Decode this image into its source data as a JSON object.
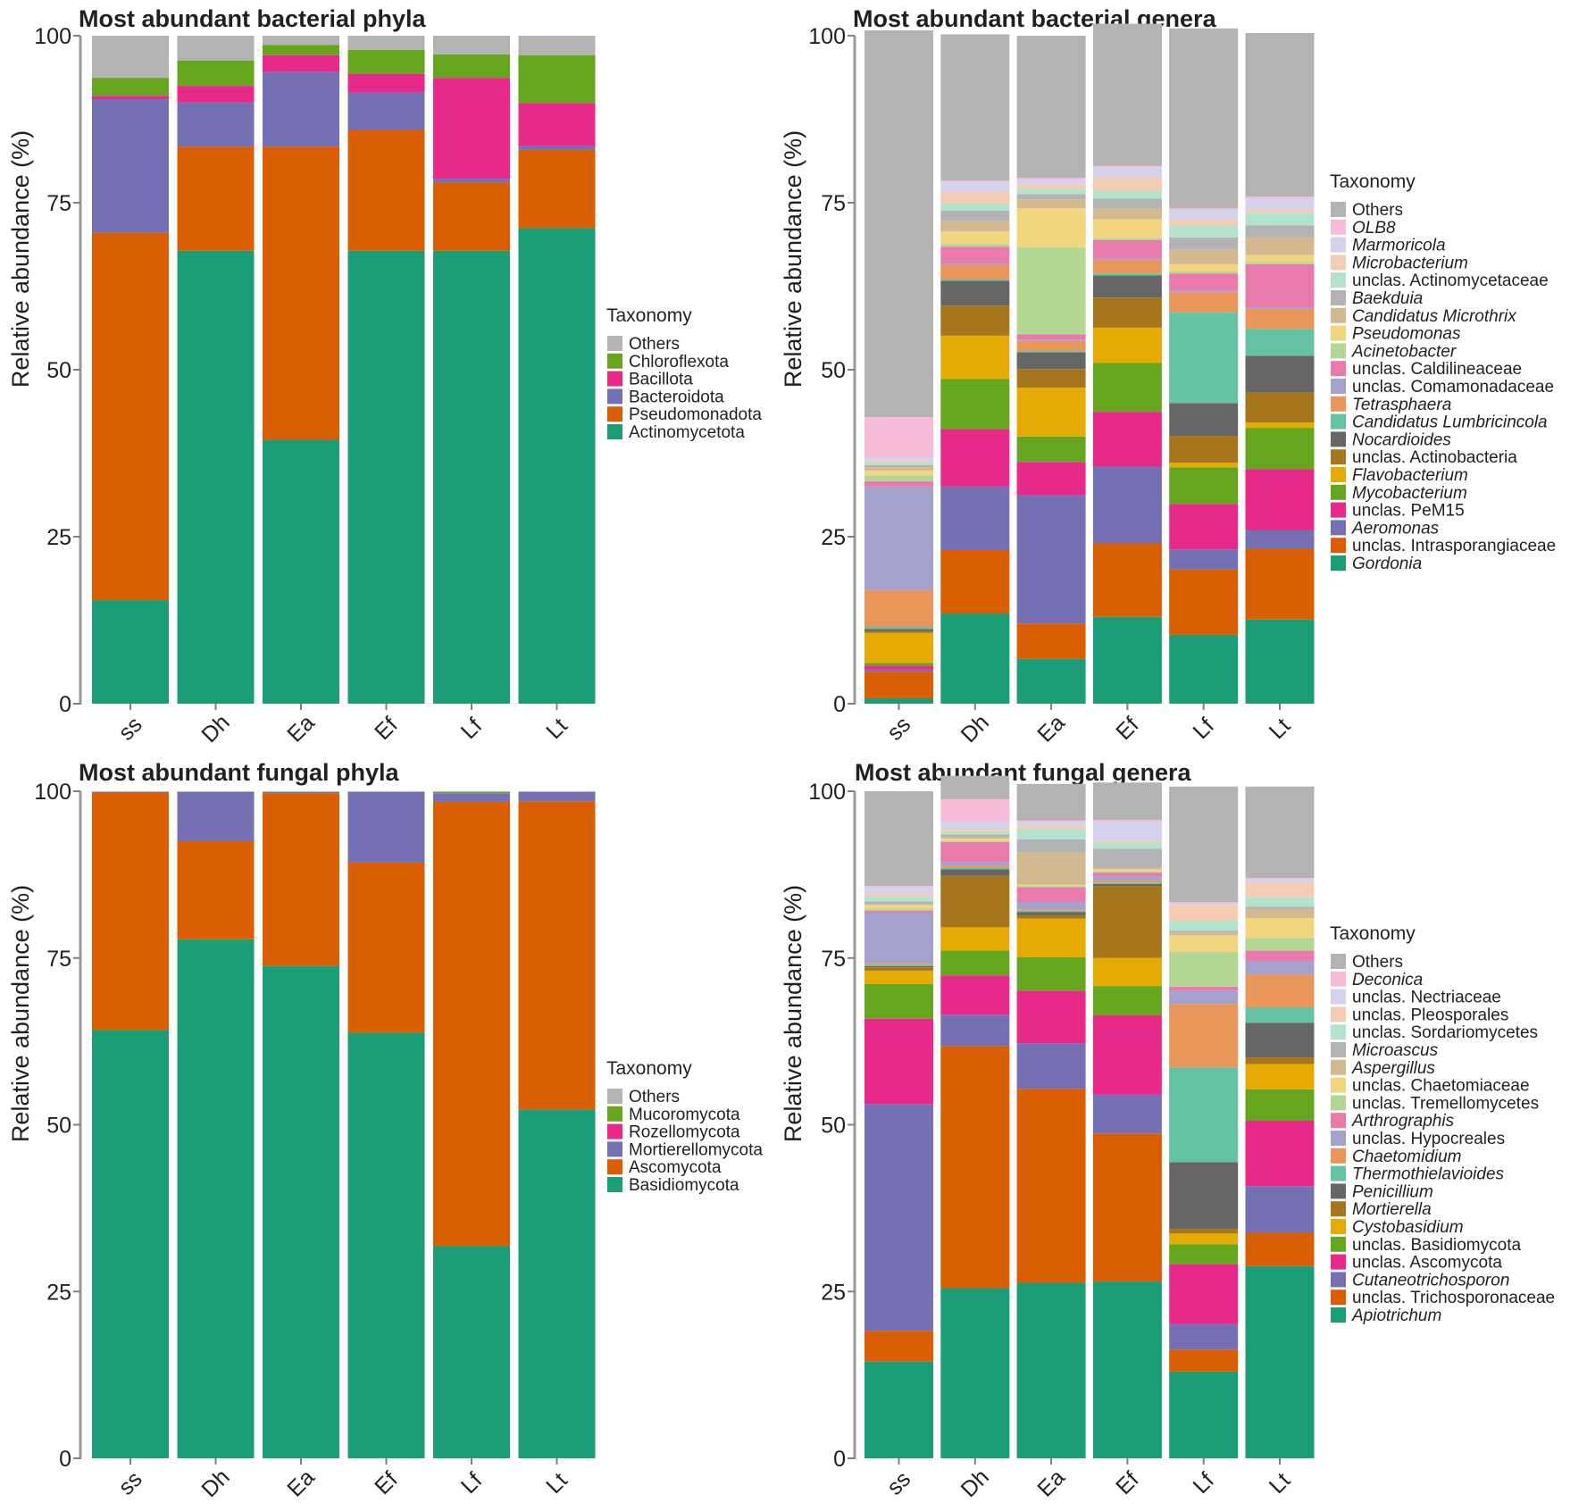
{
  "chart_data": [
    {
      "type": "bar",
      "stacked": true,
      "title": "Most abundant bacterial phyla",
      "xlabel": "",
      "ylabel": "Relative abundance (%)",
      "ylim": [
        0,
        100
      ],
      "yticks": [
        "0",
        "25",
        "50",
        "75",
        "100"
      ],
      "categories": [
        "ss",
        "Dh",
        "Ea",
        "Ef",
        "Lf",
        "Lt"
      ],
      "legend_title": "Taxonomy",
      "legend_position": "right",
      "series": [
        {
          "name": "Actinomycetota",
          "color": "#1b9e77",
          "italic": false,
          "values": [
            15.5,
            67.8,
            39.5,
            67.8,
            67.8,
            71.2
          ]
        },
        {
          "name": "Pseudomonadota",
          "color": "#d95f02",
          "italic": false,
          "values": [
            55.0,
            15.6,
            43.9,
            18.1,
            10.2,
            11.7
          ]
        },
        {
          "name": "Bacteroidota",
          "color": "#7570b3",
          "italic": false,
          "values": [
            20.0,
            6.6,
            11.2,
            5.6,
            0.6,
            0.6
          ]
        },
        {
          "name": "Bacillota",
          "color": "#e7298a",
          "italic": false,
          "values": [
            0.5,
            2.5,
            2.5,
            2.8,
            15.1,
            6.4
          ]
        },
        {
          "name": "Chloroflexota",
          "color": "#66a61e",
          "italic": false,
          "values": [
            2.7,
            3.8,
            1.5,
            3.6,
            3.5,
            7.2
          ]
        },
        {
          "name": "Others",
          "color": "#b3b3b3",
          "italic": false,
          "values": [
            6.3,
            3.7,
            1.4,
            2.1,
            2.8,
            2.9
          ]
        }
      ]
    },
    {
      "type": "bar",
      "stacked": true,
      "title": "Most abundant bacterial genera",
      "xlabel": "",
      "ylabel": "Relative abundance (%)",
      "ylim": [
        0,
        100
      ],
      "yticks": [
        "0",
        "25",
        "50",
        "75",
        "100"
      ],
      "categories": [
        "ss",
        "Dh",
        "Ea",
        "Ef",
        "Lf",
        "Lt"
      ],
      "legend_title": "Taxonomy",
      "legend_position": "right",
      "series": [
        {
          "name": "Gordonia",
          "color": "#1b9e77",
          "italic": true,
          "values": [
            0.8,
            13.5,
            6.7,
            13.0,
            10.3,
            12.6
          ]
        },
        {
          "name": "unclas. Intrasporangiaceae",
          "color": "#d95f02",
          "italic": false,
          "values": [
            4.0,
            9.5,
            5.3,
            11.0,
            9.8,
            10.6
          ]
        },
        {
          "name": "Aeromonas",
          "color": "#7570b3",
          "italic": true,
          "values": [
            0.3,
            9.5,
            19.2,
            11.5,
            3.0,
            2.8
          ]
        },
        {
          "name": "unclas. PeM15",
          "color": "#e7298a",
          "italic": false,
          "values": [
            0.6,
            8.6,
            5.0,
            8.2,
            6.8,
            9.1
          ]
        },
        {
          "name": "Mycobacterium",
          "color": "#66a61e",
          "italic": true,
          "values": [
            0.4,
            7.5,
            3.8,
            7.3,
            5.5,
            6.2
          ]
        },
        {
          "name": "Flavobacterium",
          "color": "#e6ab02",
          "italic": true,
          "values": [
            4.5,
            6.5,
            7.3,
            5.3,
            0.7,
            0.8
          ]
        },
        {
          "name": "unclas. Actinobacteria",
          "color": "#a6761d",
          "italic": false,
          "values": [
            0.3,
            4.5,
            2.8,
            4.5,
            4.0,
            4.5
          ]
        },
        {
          "name": "Nocardioides",
          "color": "#666666",
          "italic": true,
          "values": [
            0.3,
            3.7,
            2.5,
            3.3,
            4.9,
            5.5
          ]
        },
        {
          "name": "Candidatus Lumbricincola",
          "color": "#66c2a5",
          "italic": true,
          "values": [
            0.3,
            0.2,
            0.2,
            0.3,
            13.6,
            4.0
          ]
        },
        {
          "name": "Tetrasphaera",
          "color": "#e8965a",
          "italic": true,
          "values": [
            5.5,
            2.2,
            1.5,
            2.0,
            3.0,
            3.0
          ]
        },
        {
          "name": "unclas. Comamonadaceae",
          "color": "#a5a1cd",
          "italic": false,
          "values": [
            15.5,
            0.2,
            0.2,
            0.2,
            0.2,
            0.2
          ]
        },
        {
          "name": "unclas. Caldilineaceae",
          "color": "#e87aac",
          "italic": false,
          "values": [
            0.8,
            2.5,
            0.8,
            2.8,
            2.6,
            6.5
          ]
        },
        {
          "name": "Acinetobacter",
          "color": "#b3d793",
          "italic": true,
          "values": [
            0.9,
            0.4,
            13.0,
            0.3,
            0.3,
            0.3
          ]
        },
        {
          "name": "Pseudomonas",
          "color": "#f2d67f",
          "italic": true,
          "values": [
            0.7,
            1.9,
            5.9,
            2.8,
            1.1,
            1.1
          ]
        },
        {
          "name": "Candidatus Microthrix",
          "color": "#d2b990",
          "italic": true,
          "values": [
            0.5,
            1.6,
            1.3,
            1.6,
            2.2,
            2.6
          ]
        },
        {
          "name": "Baekduia",
          "color": "#b3b3b3",
          "italic": true,
          "values": [
            0.3,
            1.5,
            0.8,
            1.5,
            1.8,
            1.8
          ]
        },
        {
          "name": "unclas. Actinomycetaceae",
          "color": "#b3e2cd",
          "italic": false,
          "values": [
            0.4,
            1.1,
            0.8,
            1.2,
            1.8,
            1.9
          ]
        },
        {
          "name": "Microbacterium",
          "color": "#f4cbb3",
          "italic": true,
          "values": [
            0.3,
            1.7,
            0.6,
            2.0,
            0.9,
            0.5
          ]
        },
        {
          "name": "Marmoricola",
          "color": "#d4d2ec",
          "italic": true,
          "values": [
            0.5,
            1.5,
            0.7,
            1.5,
            1.5,
            1.6
          ]
        },
        {
          "name": "OLB8",
          "color": "#f5bbd9",
          "italic": true,
          "values": [
            6.0,
            0.2,
            0.3,
            0.2,
            0.2,
            0.3
          ]
        },
        {
          "name": "Others",
          "color": "#b3b3b3",
          "italic": false,
          "values": [
            57.9,
            21.9,
            21.3,
            21.3,
            26.9,
            24.5
          ]
        }
      ]
    },
    {
      "type": "bar",
      "stacked": true,
      "title": "Most abundant fungal phyla",
      "xlabel": "",
      "ylabel": "Relative abundance (%)",
      "ylim": [
        0,
        100
      ],
      "yticks": [
        "0",
        "25",
        "50",
        "75",
        "100"
      ],
      "categories": [
        "ss",
        "Dh",
        "Ea",
        "Ef",
        "Lf",
        "Lt"
      ],
      "legend_title": "Taxonomy",
      "legend_position": "right",
      "series": [
        {
          "name": "Basidiomycota",
          "color": "#1b9e77",
          "italic": false,
          "values": [
            64.2,
            77.8,
            73.8,
            63.8,
            31.8,
            52.3
          ]
        },
        {
          "name": "Ascomycota",
          "color": "#d95f02",
          "italic": false,
          "values": [
            35.6,
            14.7,
            25.9,
            25.5,
            66.6,
            46.2
          ]
        },
        {
          "name": "Mortierellomycota",
          "color": "#7570b3",
          "italic": false,
          "values": [
            0.1,
            7.4,
            0.2,
            10.6,
            1.3,
            1.4
          ]
        },
        {
          "name": "Rozellomycota",
          "color": "#e7298a",
          "italic": false,
          "values": [
            0.0,
            0.0,
            0.0,
            0.0,
            0.0,
            0.0
          ]
        },
        {
          "name": "Mucoromycota",
          "color": "#66a61e",
          "italic": false,
          "values": [
            0.0,
            0.0,
            0.0,
            0.0,
            0.2,
            0.0
          ]
        },
        {
          "name": "Others",
          "color": "#b3b3b3",
          "italic": false,
          "values": [
            0.1,
            0.1,
            0.1,
            0.1,
            0.1,
            0.1
          ]
        }
      ]
    },
    {
      "type": "bar",
      "stacked": true,
      "title": "Most abundant fungal genera",
      "xlabel": "",
      "ylabel": "Relative abundance (%)",
      "ylim": [
        0,
        100
      ],
      "yticks": [
        "0",
        "25",
        "50",
        "75",
        "100"
      ],
      "categories": [
        "ss",
        "Dh",
        "Ea",
        "Ef",
        "Lf",
        "Lt"
      ],
      "legend_title": "Taxonomy",
      "legend_position": "right",
      "series": [
        {
          "name": "Apiotrichum",
          "color": "#1b9e77",
          "italic": true,
          "values": [
            14.5,
            25.5,
            26.3,
            26.5,
            13.0,
            28.8
          ]
        },
        {
          "name": "unclas. Trichosporonaceae",
          "color": "#d95f02",
          "italic": false,
          "values": [
            4.6,
            36.3,
            29.1,
            22.2,
            3.3,
            5.0
          ]
        },
        {
          "name": "Cutaneotrichosporon",
          "color": "#7570b3",
          "italic": true,
          "values": [
            34.0,
            4.7,
            6.8,
            5.8,
            3.8,
            7.0
          ]
        },
        {
          "name": "unclas. Ascomycota",
          "color": "#e7298a",
          "italic": false,
          "values": [
            12.8,
            5.9,
            7.9,
            11.9,
            9.0,
            9.8
          ]
        },
        {
          "name": "unclas. Basidiomycota",
          "color": "#66a61e",
          "italic": false,
          "values": [
            5.2,
            3.7,
            5.0,
            4.4,
            3.0,
            4.7
          ]
        },
        {
          "name": "Cystobasidium",
          "color": "#e6ab02",
          "italic": true,
          "values": [
            2.0,
            3.5,
            5.8,
            4.2,
            1.6,
            3.8
          ]
        },
        {
          "name": "Mortierella",
          "color": "#a6761d",
          "italic": true,
          "values": [
            0.5,
            7.7,
            0.5,
            10.8,
            0.7,
            1.0
          ]
        },
        {
          "name": "Penicillium",
          "color": "#666666",
          "italic": true,
          "values": [
            0.2,
            1.0,
            0.5,
            0.3,
            10.0,
            5.2
          ]
        },
        {
          "name": "Thermothielavioides",
          "color": "#66c2a5",
          "italic": true,
          "values": [
            0.2,
            0.2,
            0.2,
            0.2,
            14.2,
            2.3
          ]
        },
        {
          "name": "Chaetomidium",
          "color": "#e8965a",
          "italic": true,
          "values": [
            0.2,
            0.3,
            0.2,
            0.3,
            9.5,
            4.9
          ]
        },
        {
          "name": "unclas. Hypocreales",
          "color": "#a5a1cd",
          "italic": false,
          "values": [
            7.6,
            0.6,
            1.1,
            0.6,
            2.0,
            2.0
          ]
        },
        {
          "name": "Arthrographis",
          "color": "#e87aac",
          "italic": true,
          "values": [
            0.3,
            3.0,
            2.2,
            0.6,
            0.6,
            1.6
          ]
        },
        {
          "name": "unclas. Tremellomycetes",
          "color": "#b3d793",
          "italic": false,
          "values": [
            0.3,
            0.2,
            0.2,
            0.2,
            5.2,
            1.9
          ]
        },
        {
          "name": "unclas. Chaetomiaceae",
          "color": "#f2d67f",
          "italic": false,
          "values": [
            0.5,
            0.3,
            0.2,
            0.3,
            2.5,
            3.0
          ]
        },
        {
          "name": "Aspergillus",
          "color": "#d2b990",
          "italic": true,
          "values": [
            0.2,
            0.2,
            4.8,
            0.2,
            0.4,
            1.3
          ]
        },
        {
          "name": "Microascus",
          "color": "#b3b3b3",
          "italic": true,
          "values": [
            0.4,
            0.4,
            2.0,
            2.9,
            0.3,
            0.4
          ]
        },
        {
          "name": "unclas. Sordariomycetes",
          "color": "#b3e2cd",
          "italic": false,
          "values": [
            0.7,
            0.5,
            1.5,
            0.9,
            1.5,
            1.4
          ]
        },
        {
          "name": "unclas. Pleosporales",
          "color": "#f4cbb3",
          "italic": false,
          "values": [
            0.4,
            0.4,
            0.5,
            0.3,
            2.3,
            2.2
          ]
        },
        {
          "name": "unclas. Nectriaceae",
          "color": "#d4d2ec",
          "italic": false,
          "values": [
            1.0,
            1.0,
            0.6,
            2.8,
            0.3,
            0.5
          ]
        },
        {
          "name": "Deconica",
          "color": "#f5bbd9",
          "italic": true,
          "values": [
            0.2,
            3.4,
            0.2,
            0.3,
            0.2,
            0.2
          ]
        },
        {
          "name": "Others",
          "color": "#b3b3b3",
          "italic": false,
          "values": [
            14.2,
            3.5,
            5.5,
            5.6,
            17.3,
            13.7
          ]
        }
      ]
    }
  ]
}
